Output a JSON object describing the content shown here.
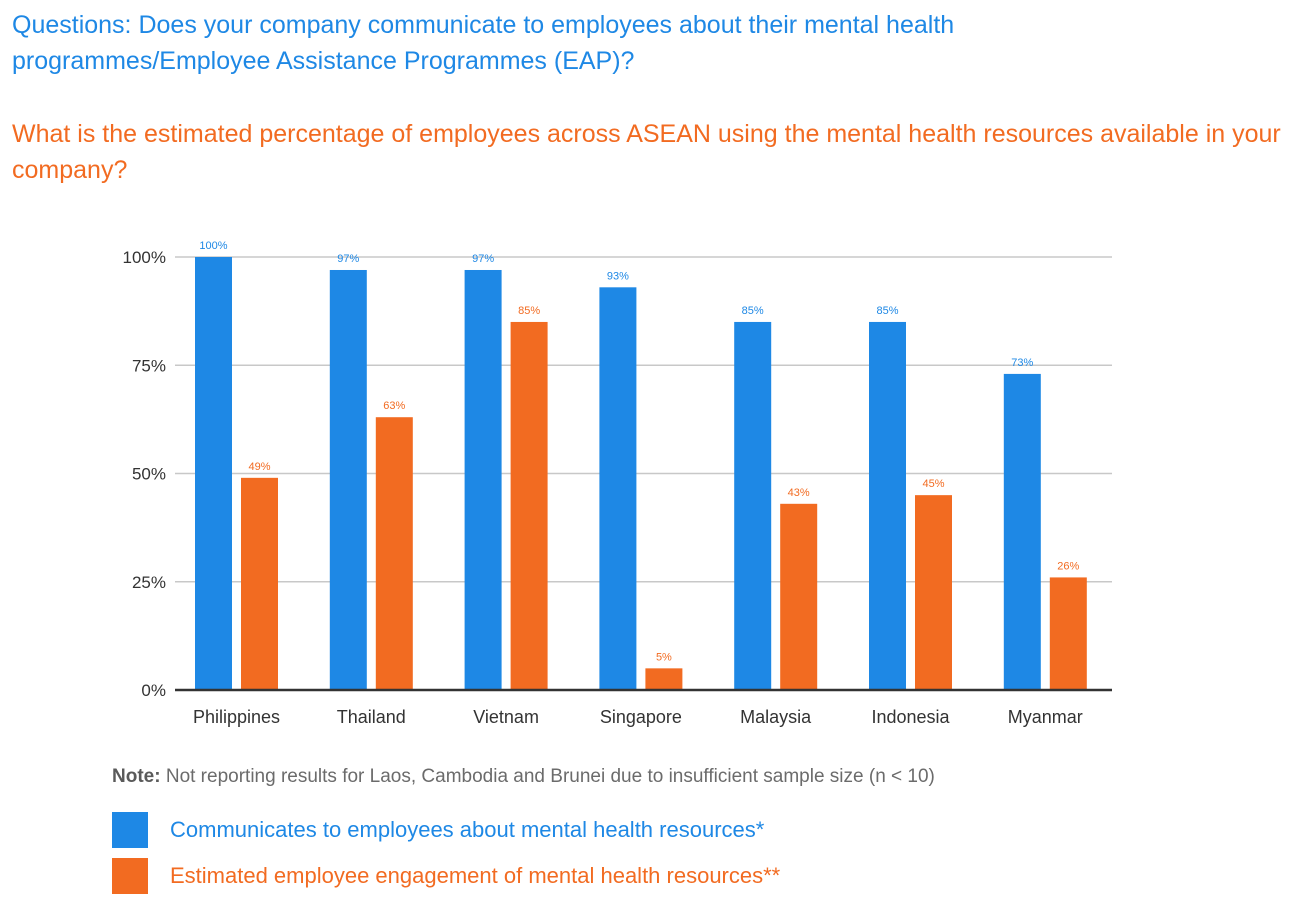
{
  "questions": {
    "q1": "Questions: Does your company communicate to employees about their mental health programmes/Employee Assistance Programmes (EAP)?",
    "q2": "What is the estimated percentage of employees across ASEAN using the mental health resources available in your company?"
  },
  "colors": {
    "blue": "#1E88E5",
    "orange": "#F26B21",
    "grid": "#c8c8c8",
    "axis": "#333333",
    "text": "#333333"
  },
  "chart_data": {
    "type": "bar",
    "categories": [
      "Philippines",
      "Thailand",
      "Vietnam",
      "Singapore",
      "Malaysia",
      "Indonesia",
      "Myanmar"
    ],
    "ylim": [
      0,
      100
    ],
    "yticks": [
      0,
      25,
      50,
      75,
      100
    ],
    "ytick_labels": [
      "0%",
      "25%",
      "50%",
      "75%",
      "100%"
    ],
    "grid": true,
    "legend_position": "bottom-left",
    "series": [
      {
        "name": "Communicates to employees about mental health resources*",
        "color": "#1E88E5",
        "values": [
          100,
          97,
          97,
          93,
          85,
          85,
          73
        ],
        "labels": [
          "100%",
          "97%",
          "97%",
          "93%",
          "85%",
          "85%",
          "73%"
        ]
      },
      {
        "name": "Estimated employee engagement of mental health resources**",
        "color": "#F26B21",
        "values": [
          49,
          63,
          85,
          5,
          43,
          45,
          26
        ],
        "labels": [
          "49%",
          "63%",
          "85%",
          "5%",
          "43%",
          "45%",
          "26%"
        ]
      }
    ]
  },
  "note": {
    "label": "Note:",
    "text": " Not reporting results for Laos, Cambodia and Brunei due to insufficient sample size (n < 10)"
  }
}
